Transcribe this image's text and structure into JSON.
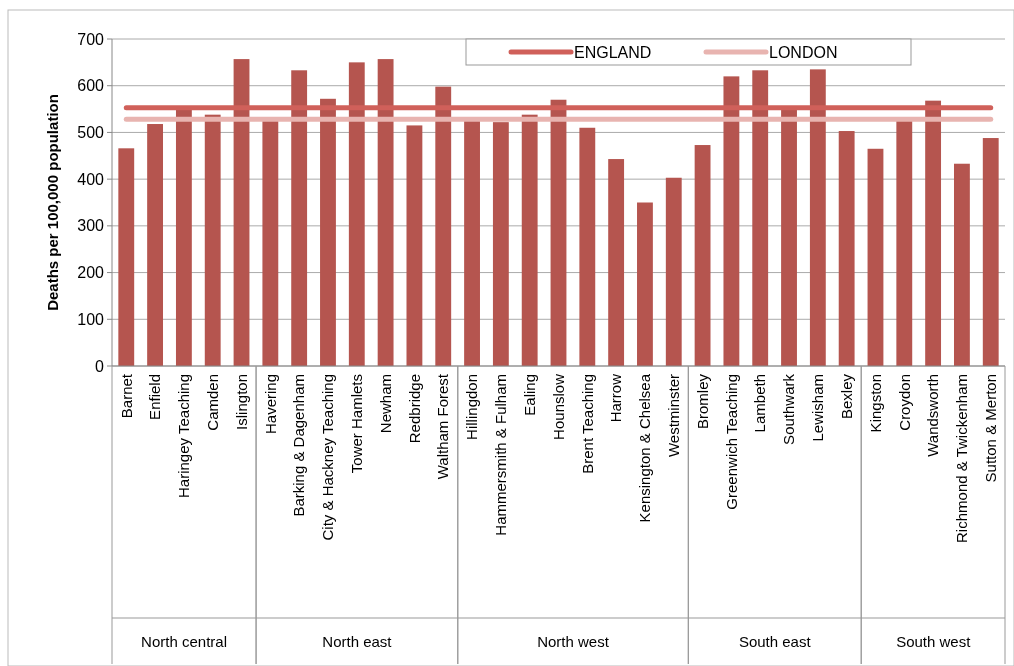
{
  "chart_data": {
    "type": "bar",
    "ylabel": "Deaths per 100,000 population",
    "categories": [
      "Barnet",
      "Enfield",
      "Haringey Teaching",
      "Camden",
      "Islington",
      "Havering",
      "Barking & Dagenham",
      "City & Hackney Teaching",
      "Tower Hamlets",
      "Newham",
      "Redbridge",
      "Waltham Forest",
      "Hillingdon",
      "Hammersmith & Fulham",
      "Ealing",
      "Hounslow",
      "Brent Teaching",
      "Harrow",
      "Kensington & Chelsea",
      "Westminster",
      "Bromley",
      "Greenwich Teaching",
      "Lambeth",
      "Southwark",
      "Lewisham",
      "Bexley",
      "Kingston",
      "Croydon",
      "Wandsworth",
      "Richmond & Twickenham",
      "Sutton & Merton"
    ],
    "series": [
      {
        "color": "#b5554f",
        "values": [
          466,
          518,
          553,
          538,
          657,
          525,
          633,
          572,
          650,
          657,
          515,
          598,
          525,
          522,
          538,
          570,
          510,
          443,
          350,
          403,
          473,
          620,
          633,
          555,
          635,
          503,
          465,
          525,
          568,
          433,
          488
        ]
      },
      {
        "type": "line",
        "name": "ENGLAND",
        "color": "#d0605a",
        "values": [
          553,
          553,
          553,
          553,
          553,
          553,
          553,
          553,
          553,
          553,
          553,
          553,
          553,
          553,
          553,
          553,
          553,
          553,
          553,
          553,
          553,
          553,
          553,
          553,
          553,
          553,
          553,
          553,
          553,
          553,
          553
        ]
      },
      {
        "type": "line",
        "name": "LONDON",
        "color": "#e8b4b0",
        "values": [
          528,
          528,
          528,
          528,
          528,
          528,
          528,
          528,
          528,
          528,
          528,
          528,
          528,
          528,
          528,
          528,
          528,
          528,
          528,
          528,
          528,
          528,
          528,
          528,
          528,
          528,
          528,
          528,
          528,
          528,
          528
        ]
      }
    ],
    "annotations": [
      "North central",
      "North east",
      "North west",
      "South east",
      "South west"
    ],
    "ylim": [
      0,
      700
    ],
    "yticks": [
      0,
      100,
      200,
      300,
      400,
      500,
      600,
      700
    ],
    "grid": "y",
    "legend": "top right",
    "marker": "none",
    "line_style": "solid"
  }
}
